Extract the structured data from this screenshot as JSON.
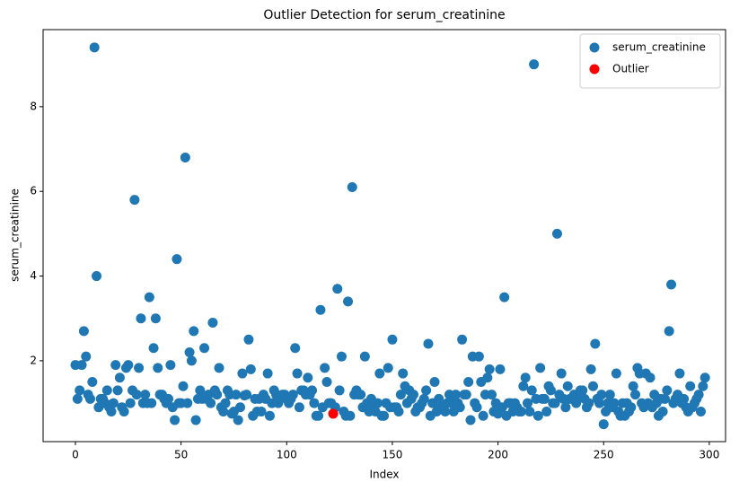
{
  "chart_data": {
    "type": "scatter",
    "title": "Outlier Detection for serum_creatinine",
    "x_label": "Index",
    "y_label": "serum_creatinine",
    "xlim": [
      -15.3,
      307.7
    ],
    "ylim": [
      0.09,
      9.82
    ],
    "xticks": [
      0,
      50,
      100,
      150,
      200,
      250,
      300
    ],
    "yticks": [
      2,
      4,
      6,
      8
    ],
    "grid": false,
    "legend": "upper right",
    "series": [
      {
        "name": "serum_creatinine",
        "color": "#1f77b4",
        "x": [
          0,
          1,
          2,
          3,
          4,
          5,
          6,
          7,
          8,
          9,
          10,
          11,
          12,
          13,
          14,
          15,
          16,
          17,
          18,
          19,
          20,
          21,
          22,
          23,
          24,
          25,
          26,
          27,
          28,
          29,
          30,
          31,
          32,
          33,
          34,
          35,
          36,
          37,
          38,
          39,
          40,
          41,
          42,
          43,
          44,
          45,
          46,
          47,
          48,
          49,
          50,
          51,
          52,
          53,
          54,
          55,
          56,
          57,
          58,
          59,
          60,
          61,
          62,
          63,
          64,
          65,
          66,
          67,
          68,
          69,
          70,
          71,
          72,
          73,
          74,
          75,
          76,
          77,
          78,
          79,
          80,
          81,
          82,
          83,
          84,
          85,
          86,
          87,
          88,
          89,
          90,
          91,
          92,
          93,
          94,
          95,
          96,
          97,
          98,
          99,
          100,
          101,
          102,
          103,
          104,
          105,
          106,
          107,
          108,
          109,
          110,
          111,
          112,
          113,
          114,
          115,
          116,
          117,
          118,
          119,
          120,
          121,
          122,
          123,
          124,
          125,
          126,
          127,
          128,
          129,
          130,
          131,
          132,
          133,
          134,
          135,
          136,
          137,
          138,
          139,
          140,
          141,
          142,
          143,
          144,
          145,
          146,
          147,
          148,
          149,
          150,
          151,
          152,
          153,
          154,
          155,
          156,
          157,
          158,
          159,
          160,
          161,
          162,
          163,
          164,
          165,
          166,
          167,
          168,
          169,
          170,
          171,
          172,
          173,
          174,
          175,
          176,
          177,
          178,
          179,
          180,
          181,
          182,
          183,
          184,
          185,
          186,
          187,
          188,
          189,
          190,
          191,
          192,
          193,
          194,
          195,
          196,
          197,
          198,
          199,
          200,
          201,
          202,
          203,
          204,
          205,
          206,
          207,
          208,
          209,
          210,
          211,
          212,
          213,
          214,
          215,
          216,
          217,
          218,
          219,
          220,
          221,
          222,
          223,
          224,
          225,
          226,
          227,
          228,
          229,
          230,
          231,
          232,
          233,
          234,
          235,
          236,
          237,
          238,
          239,
          240,
          241,
          242,
          243,
          244,
          245,
          246,
          247,
          248,
          249,
          250,
          251,
          252,
          253,
          254,
          255,
          256,
          257,
          258,
          259,
          260,
          261,
          262,
          263,
          264,
          265,
          266,
          267,
          268,
          269,
          270,
          271,
          272,
          273,
          274,
          275,
          276,
          277,
          278,
          279,
          280,
          281,
          282,
          283,
          284,
          285,
          286,
          287,
          288,
          289,
          290,
          291,
          292,
          293,
          294,
          295,
          296,
          297,
          298
        ],
        "values": [
          1.9,
          1.1,
          1.3,
          1.9,
          2.7,
          2.1,
          1.2,
          1.1,
          1.5,
          9.4,
          4.0,
          0.9,
          1.1,
          1.1,
          1.0,
          1.3,
          0.9,
          0.8,
          1.0,
          1.9,
          1.3,
          1.6,
          0.9,
          0.8,
          1.83,
          1.9,
          1.0,
          1.3,
          5.8,
          1.2,
          1.83,
          3.0,
          1.0,
          1.2,
          1.0,
          3.5,
          1.0,
          2.3,
          3.0,
          1.83,
          1.2,
          1.2,
          1.1,
          1.0,
          1.1,
          1.9,
          0.9,
          0.6,
          4.4,
          1.0,
          1.0,
          1.4,
          6.8,
          1.0,
          2.2,
          2.0,
          2.7,
          0.6,
          1.1,
          1.3,
          1.1,
          2.3,
          1.1,
          1.2,
          1.0,
          2.9,
          1.3,
          1.2,
          1.83,
          0.9,
          0.8,
          1.0,
          1.3,
          1.2,
          0.75,
          0.8,
          1.2,
          0.6,
          0.9,
          1.7,
          1.18,
          1.2,
          2.5,
          1.8,
          0.7,
          1.1,
          0.8,
          1.1,
          0.8,
          1.2,
          1.1,
          1.7,
          0.7,
          1.0,
          1.3,
          1.2,
          1.0,
          1.1,
          1.2,
          1.2,
          1.1,
          1.0,
          1.1,
          1.2,
          2.3,
          1.7,
          0.9,
          1.3,
          1.3,
          1.2,
          1.6,
          1.2,
          1.3,
          1.0,
          0.7,
          0.7,
          3.2,
          0.9,
          1.83,
          1.5,
          1.0,
          1.0,
          0.75,
          0.9,
          3.7,
          1.3,
          2.1,
          0.8,
          0.7,
          3.4,
          0.7,
          6.1,
          1.2,
          1.3,
          1.2,
          1.2,
          0.9,
          2.1,
          1.0,
          0.8,
          1.1,
          0.9,
          0.8,
          1.0,
          1.7,
          0.7,
          0.7,
          1.0,
          1.83,
          0.9,
          2.5,
          0.9,
          0.9,
          0.8,
          1.2,
          1.7,
          1.4,
          1.0,
          1.3,
          1.1,
          1.2,
          0.8,
          0.9,
          0.9,
          1.0,
          1.1,
          1.3,
          2.4,
          0.7,
          1.0,
          1.5,
          0.8,
          1.1,
          0.9,
          0.9,
          0.8,
          1.0,
          1.2,
          1.0,
          0.8,
          1.2,
          1.0,
          0.9,
          2.5,
          1.2,
          1.2,
          1.5,
          0.6,
          2.1,
          1.0,
          0.9,
          2.1,
          1.5,
          0.7,
          1.2,
          1.6,
          1.8,
          1.2,
          0.8,
          1.0,
          0.75,
          1.8,
          0.9,
          3.5,
          0.7,
          1.0,
          1.0,
          0.8,
          1.0,
          0.9,
          0.8,
          0.8,
          1.4,
          1.6,
          1.0,
          0.8,
          1.3,
          9.0,
          1.1,
          0.7,
          1.83,
          1.1,
          1.1,
          0.8,
          1.4,
          1.3,
          1.0,
          1.0,
          5.0,
          1.2,
          1.7,
          1.1,
          0.9,
          1.4,
          1.1,
          1.1,
          1.2,
          1.0,
          1.2,
          1.3,
          1.3,
          1.1,
          0.9,
          1.0,
          1.8,
          1.4,
          2.4,
          1.1,
          1.0,
          1.2,
          0.5,
          0.8,
          1.0,
          1.2,
          0.9,
          1.0,
          1.7,
          0.8,
          0.7,
          1.0,
          0.7,
          1.0,
          0.8,
          0.9,
          1.4,
          1.2,
          1.83,
          1.7,
          1.0,
          0.9,
          1.7,
          1.0,
          1.6,
          0.9,
          1.2,
          1.0,
          0.7,
          1.1,
          0.8,
          1.1,
          1.3,
          2.7,
          3.8,
          1.0,
          1.1,
          1.2,
          1.7,
          1.0,
          1.1,
          0.9,
          0.8,
          1.4,
          0.9,
          1.0,
          1.1,
          1.2,
          0.8,
          1.4,
          1.6
        ]
      },
      {
        "name": "Outlier",
        "color": "#ff0000",
        "x": [
          122
        ],
        "values": [
          0.75
        ]
      }
    ]
  }
}
